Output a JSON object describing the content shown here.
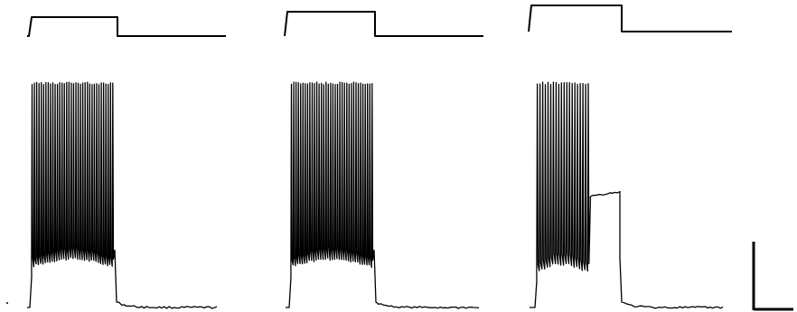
{
  "chart_data": {
    "type": "line",
    "title": "",
    "xlabel": "",
    "ylabel": "",
    "grid": false,
    "legend": "none",
    "panels": [
      {
        "stimulus": {
          "baseline": 0,
          "step": 1
        },
        "trace": {
          "plateau_mV": -52,
          "peak_mV": 10,
          "trough_mV": -60,
          "spike_count": 36,
          "spike_start_fraction": 0.02,
          "spike_end_fraction": 0.97,
          "block": false,
          "depolarized_plateau_mV": null
        }
      },
      {
        "stimulus": {
          "baseline": 0,
          "step": 1
        },
        "trace": {
          "plateau_mV": -52,
          "peak_mV": 10,
          "trough_mV": -60,
          "spike_count": 36,
          "spike_start_fraction": 0.02,
          "spike_end_fraction": 0.97,
          "block": false,
          "depolarized_plateau_mV": null
        }
      },
      {
        "stimulus": {
          "baseline": 0,
          "step": 1
        },
        "trace": {
          "plateau_mV": -55,
          "peak_mV": 10,
          "trough_mV": -62,
          "spike_count": 20,
          "spike_start_fraction": 0.02,
          "spike_end_fraction": 0.62,
          "block": true,
          "depolarized_plateau_mV": -33
        }
      }
    ],
    "rest_mV": -75,
    "scale_bar": {
      "x_label": "",
      "y_label": ""
    }
  }
}
